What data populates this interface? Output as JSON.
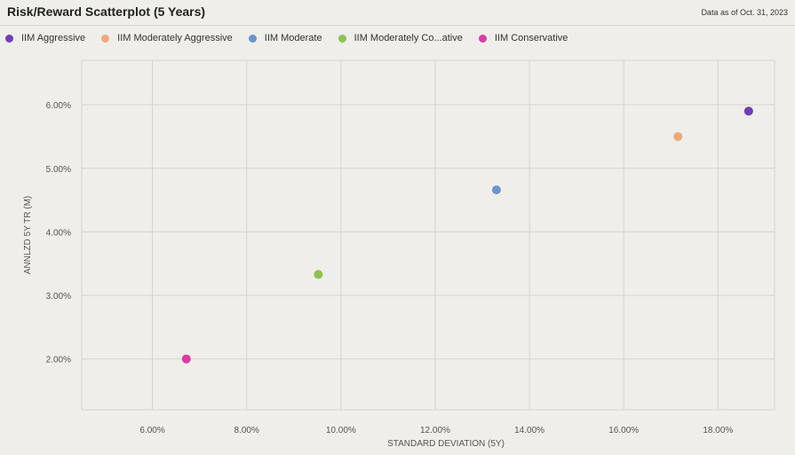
{
  "header": {
    "title": "Risk/Reward Scatterplot (5 Years)",
    "as_of": "Data as of Oct. 31, 2023"
  },
  "chart_data": {
    "type": "scatter",
    "title": "Risk/Reward Scatterplot (5 Years)",
    "xlabel": "STANDARD DEVIATION (5Y)",
    "ylabel": "ANNLZD 5Y TR (M)",
    "xlim": [
      4.5,
      19.2
    ],
    "ylim": [
      1.2,
      6.7
    ],
    "x_ticks": [
      6,
      8,
      10,
      12,
      14,
      16,
      18
    ],
    "x_tick_labels": [
      "6.00%",
      "8.00%",
      "10.00%",
      "12.00%",
      "14.00%",
      "16.00%",
      "18.00%"
    ],
    "y_ticks": [
      2,
      3,
      4,
      5,
      6
    ],
    "y_tick_labels": [
      "2.00%",
      "3.00%",
      "4.00%",
      "5.00%",
      "6.00%"
    ],
    "grid": true,
    "legend_position": "top-left",
    "series": [
      {
        "name": "IIM Aggressive",
        "color": "#6f3fb5",
        "x": 18.65,
        "y": 5.9
      },
      {
        "name": "IIM Moderately Aggressive",
        "color": "#f0a878",
        "x": 17.15,
        "y": 5.5
      },
      {
        "name": "IIM Moderate",
        "color": "#6b93cf",
        "x": 13.3,
        "y": 4.66
      },
      {
        "name": "IIM Moderately Co...ative",
        "color": "#8dc24e",
        "x": 9.52,
        "y": 3.33
      },
      {
        "name": "IIM Conservative",
        "color": "#d93ca5",
        "x": 6.72,
        "y": 2.0
      }
    ]
  }
}
